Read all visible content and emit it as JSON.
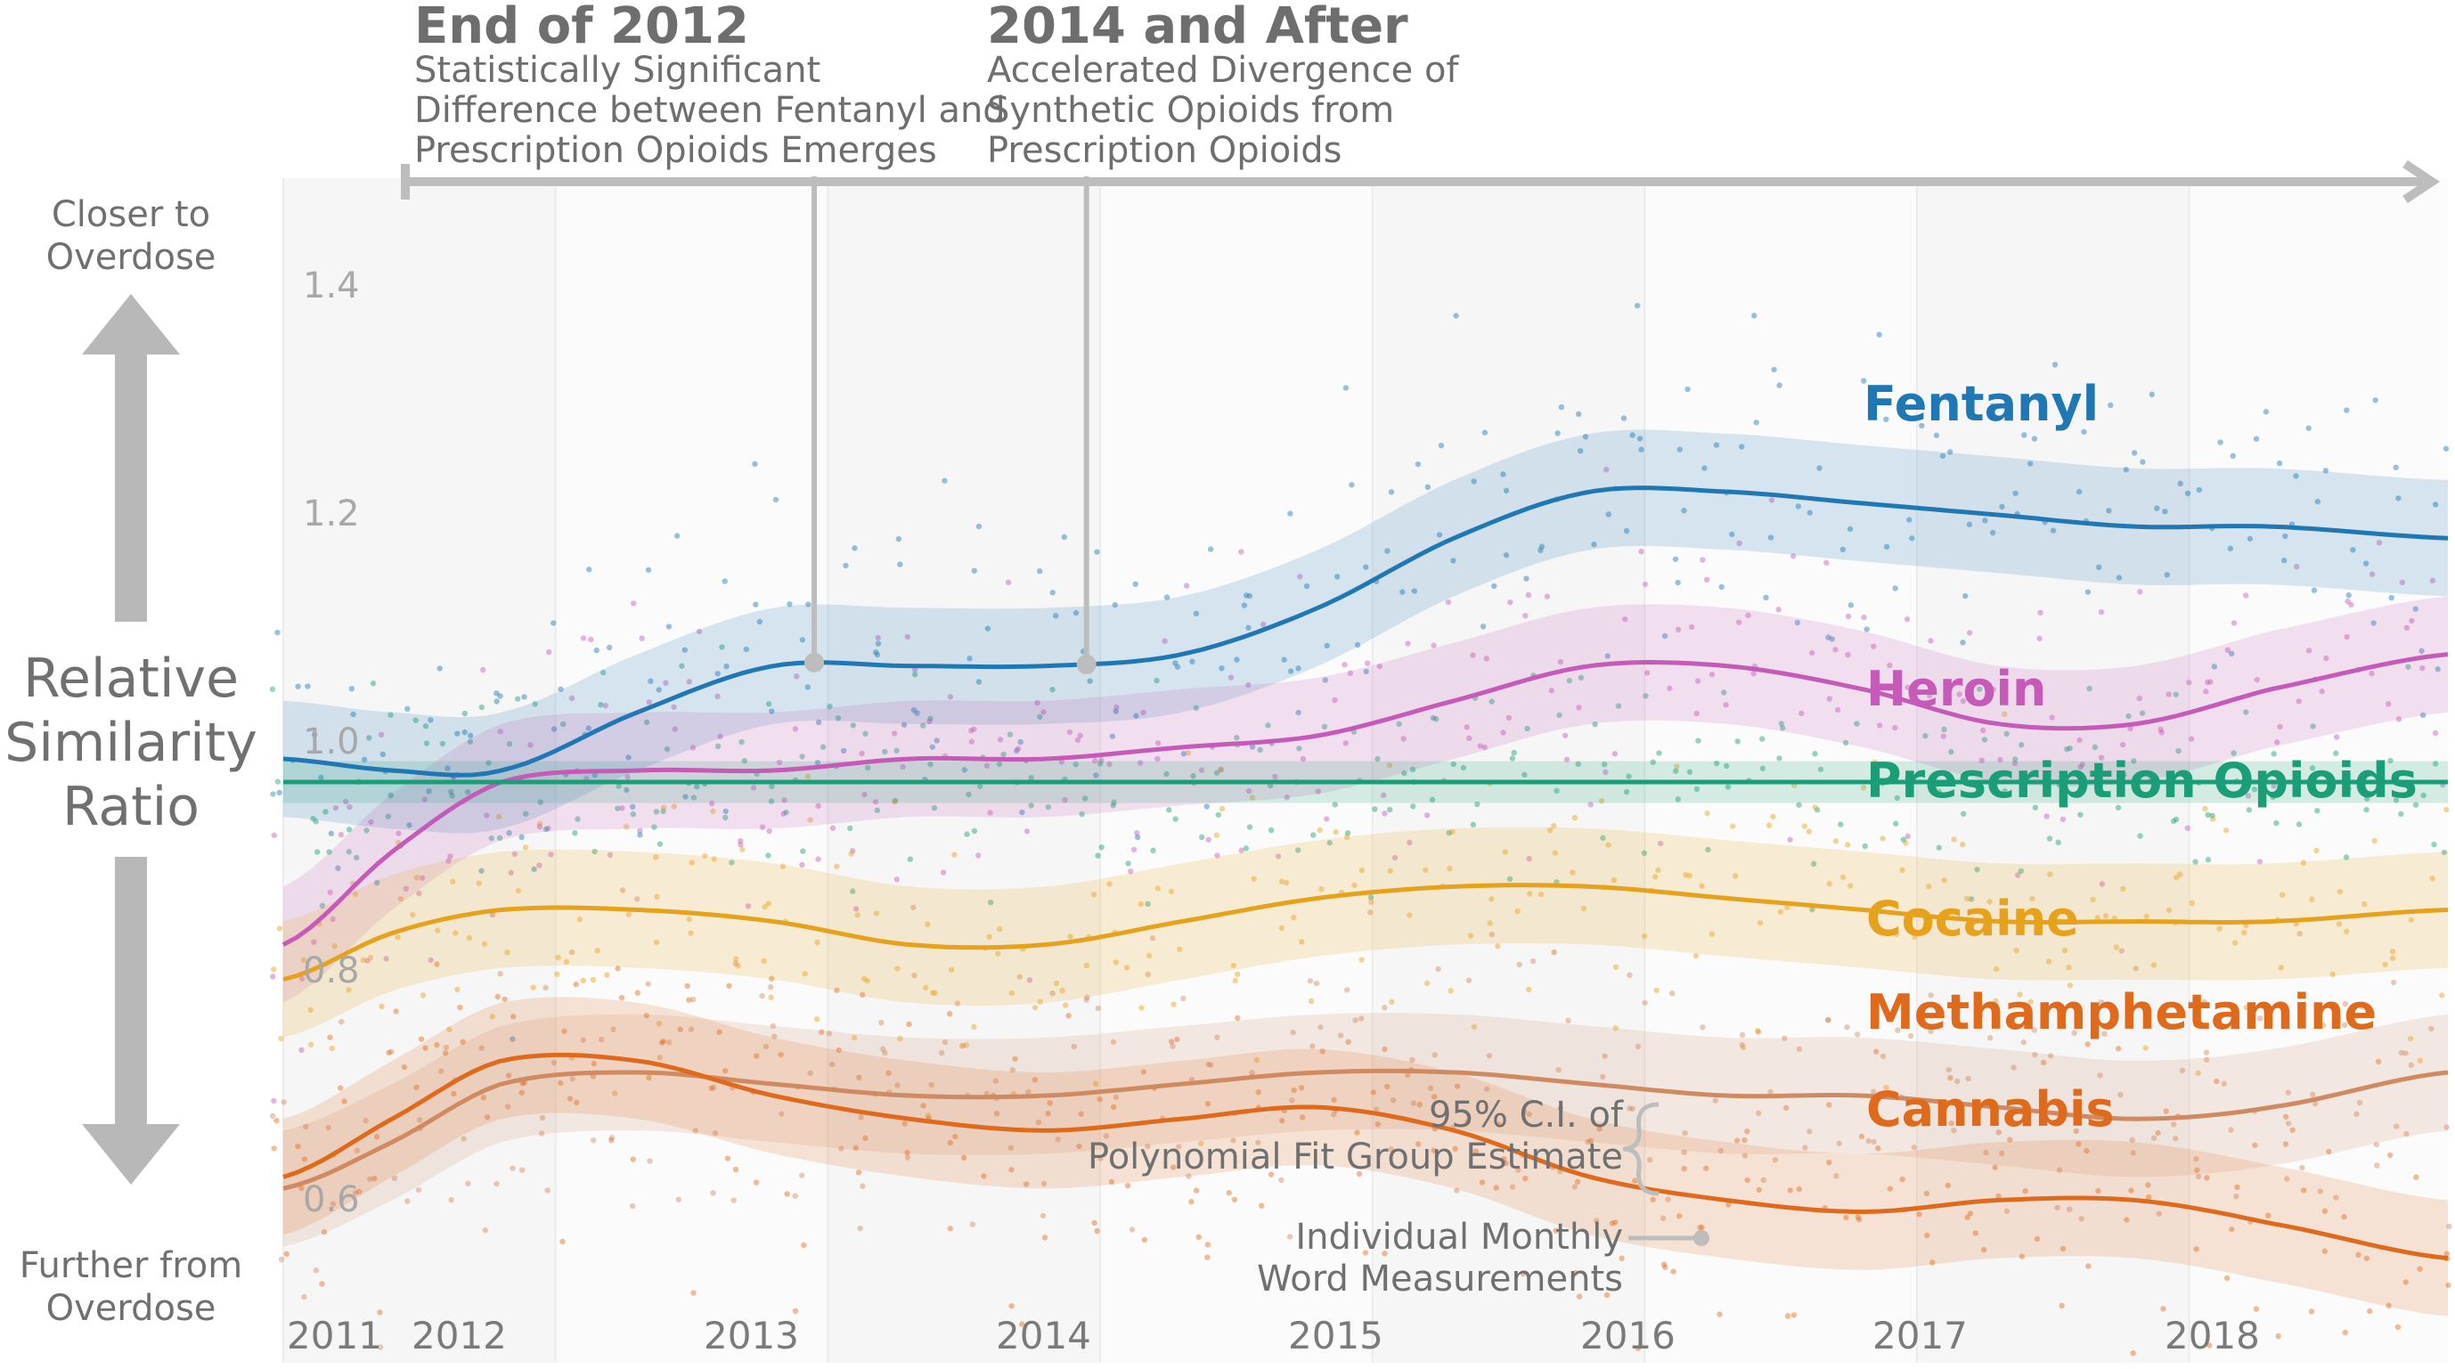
{
  "chart_data": {
    "type": "line",
    "xlim": [
      2011.0,
      2018.95
    ],
    "ylim": [
      0.5,
      1.52
    ],
    "y_ticks": [
      "0.6",
      "0.8",
      "1.0",
      "1.2",
      "1.4"
    ],
    "x_ticks": [
      {
        "year": 2011,
        "label": "2011"
      },
      {
        "year": 2012,
        "label": "2012"
      },
      {
        "year": 2013,
        "label": "2013"
      },
      {
        "year": 2014,
        "label": "2014"
      },
      {
        "year": 2015,
        "label": "2015"
      },
      {
        "year": 2016,
        "label": "2016"
      },
      {
        "year": 2017,
        "label": "2017"
      },
      {
        "year": 2018,
        "label": "2018"
      }
    ],
    "y_axis": {
      "label_lines": [
        "Relative",
        "Similarity",
        "Ratio"
      ],
      "top_lines": [
        "Closer to",
        "Overdose"
      ],
      "bottom_lines": [
        "Further from",
        "Overdose"
      ]
    },
    "series": [
      {
        "name": "Fentanyl",
        "color": "#1f78b4",
        "band": 0.05,
        "x": [
          2011.0,
          2011.4,
          2011.8,
          2012.3,
          2012.8,
          2013.3,
          2013.8,
          2014.3,
          2014.8,
          2015.3,
          2015.8,
          2016.3,
          2016.8,
          2017.3,
          2017.8,
          2018.3,
          2018.95
        ],
        "y": [
          1.02,
          1.01,
          1.01,
          1.06,
          1.1,
          1.1,
          1.1,
          1.11,
          1.15,
          1.21,
          1.25,
          1.25,
          1.24,
          1.23,
          1.22,
          1.22,
          1.21
        ]
      },
      {
        "name": "Heroin",
        "color": "#c55ab8",
        "band": 0.05,
        "x": [
          2011.0,
          2011.4,
          2011.8,
          2012.3,
          2012.8,
          2013.3,
          2013.8,
          2014.3,
          2014.8,
          2015.3,
          2015.8,
          2016.3,
          2016.8,
          2017.3,
          2017.8,
          2018.3,
          2018.95
        ],
        "y": [
          0.86,
          0.94,
          1.0,
          1.01,
          1.01,
          1.02,
          1.02,
          1.03,
          1.04,
          1.07,
          1.1,
          1.1,
          1.08,
          1.05,
          1.05,
          1.08,
          1.11
        ]
      },
      {
        "name": "Prescription Opioids",
        "color": "#1a9e77",
        "band": 0.018,
        "x": [
          2011.0,
          2018.95
        ],
        "y": [
          1.0,
          1.0
        ]
      },
      {
        "name": "Cocaine",
        "color": "#e6a21a",
        "band": 0.05,
        "x": [
          2011.0,
          2011.4,
          2011.8,
          2012.3,
          2012.8,
          2013.3,
          2013.8,
          2014.3,
          2014.8,
          2015.3,
          2015.8,
          2016.3,
          2016.8,
          2017.3,
          2017.8,
          2018.3,
          2018.95
        ],
        "y": [
          0.83,
          0.87,
          0.89,
          0.89,
          0.88,
          0.86,
          0.86,
          0.88,
          0.9,
          0.91,
          0.91,
          0.9,
          0.89,
          0.88,
          0.88,
          0.88,
          0.89
        ]
      },
      {
        "name": "Methamphetamine",
        "color": "#d08a62",
        "band": 0.05,
        "x": [
          2011.0,
          2011.4,
          2011.8,
          2012.3,
          2012.8,
          2013.3,
          2013.8,
          2014.3,
          2014.8,
          2015.3,
          2015.8,
          2016.3,
          2016.8,
          2017.3,
          2017.8,
          2018.3,
          2018.95
        ],
        "y": [
          0.65,
          0.69,
          0.74,
          0.75,
          0.74,
          0.73,
          0.73,
          0.74,
          0.75,
          0.75,
          0.74,
          0.73,
          0.73,
          0.72,
          0.71,
          0.72,
          0.75
        ]
      },
      {
        "name": "Cannabis",
        "color": "#e06a1c",
        "band": 0.05,
        "x": [
          2011.0,
          2011.4,
          2011.8,
          2012.3,
          2012.8,
          2013.3,
          2013.8,
          2014.3,
          2014.8,
          2015.3,
          2015.8,
          2016.3,
          2016.8,
          2017.3,
          2017.8,
          2018.3,
          2018.95
        ],
        "y": [
          0.66,
          0.71,
          0.76,
          0.76,
          0.73,
          0.71,
          0.7,
          0.71,
          0.72,
          0.7,
          0.66,
          0.64,
          0.63,
          0.64,
          0.64,
          0.62,
          0.59
        ]
      }
    ],
    "annotations": {
      "end_2012": {
        "title": "End of 2012",
        "lines": [
          "Statistically Significant",
          "Difference between Fentanyl and",
          "Prescription Opioids Emerges"
        ],
        "x": 2012.95
      },
      "after_2014": {
        "title": "2014 and After",
        "lines": [
          "Accelerated  Divergence of",
          "Synthetic Opioids from",
          "Prescription Opioids"
        ],
        "x": 2013.95
      },
      "ci_note": [
        "95% C.I. of",
        "Polynomial Fit Group Estimate"
      ],
      "points_note": [
        "Individual Monthly",
        "Word Measurements"
      ]
    },
    "grid": false,
    "legend": "inline labels at right"
  }
}
